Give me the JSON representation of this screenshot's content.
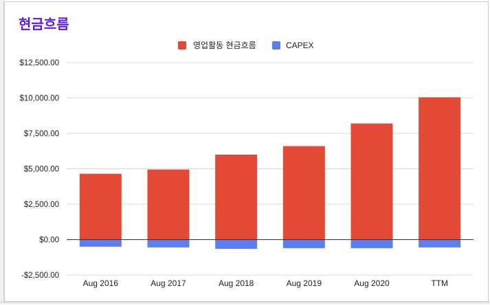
{
  "chart_data": {
    "type": "bar",
    "title": "현금흐름",
    "title_color": "#5b1be8",
    "stacked": true,
    "legend_position": "top",
    "grid": true,
    "categories": [
      "Aug 2016",
      "Aug 2017",
      "Aug 2018",
      "Aug 2019",
      "Aug 2020",
      "TTM"
    ],
    "series": [
      {
        "name": "영업활동 현금흐름",
        "color": "#e34a36",
        "values": [
          4650,
          4950,
          6000,
          6600,
          8200,
          10050
        ]
      },
      {
        "name": "CAPEX",
        "color": "#5b7ff0",
        "values": [
          -500,
          -550,
          -650,
          -600,
          -600,
          -550
        ]
      }
    ],
    "yticks": [
      12500,
      10000,
      7500,
      5000,
      2500,
      0,
      -2500
    ],
    "ytick_labels": [
      "$12,500.00",
      "$10,000.00",
      "$7,500.00",
      "$5,000.00",
      "$2,500.00",
      "$0.00",
      "-$2,500.00"
    ],
    "ylim": [
      -2500,
      12500
    ],
    "xlabel": "",
    "ylabel": ""
  }
}
